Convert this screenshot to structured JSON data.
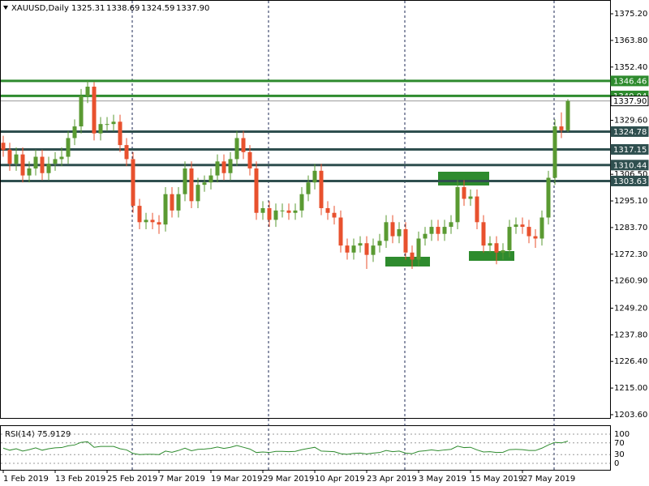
{
  "chart_data": [
    {
      "type": "candlestick",
      "title": "XAUUSD,Daily",
      "ohlc_labels": [
        "1325.31",
        "1338.69",
        "1324.59",
        "1337.90"
      ],
      "categories": [
        "1 Feb 2019",
        null,
        null,
        null,
        null,
        null,
        null,
        null,
        "13 Feb 2019",
        null,
        null,
        null,
        null,
        null,
        null,
        null,
        "25 Feb 2019",
        null,
        null,
        null,
        null,
        null,
        null,
        null,
        "7 Mar 2019",
        null,
        null,
        null,
        null,
        null,
        null,
        null,
        "19 Mar 2019",
        null,
        null,
        null,
        null,
        null,
        null,
        null,
        "29 Mar 2019",
        null,
        null,
        null,
        null,
        null,
        null,
        null,
        "10 Apr 2019",
        null,
        null,
        null,
        null,
        null,
        null,
        null,
        "23 Apr 2019",
        null,
        null,
        null,
        null,
        null,
        null,
        null,
        "3 May 2019",
        null,
        null,
        null,
        null,
        null,
        null,
        null,
        "15 May 2019",
        null,
        null,
        null,
        null,
        null,
        null,
        null,
        "27 May 2019",
        null,
        null,
        null,
        null,
        null,
        null,
        null
      ],
      "open": [
        1320,
        1317,
        1311,
        1315,
        1306,
        1309,
        1314,
        1307,
        1311,
        1313,
        1314,
        1322,
        1327,
        1340,
        1344,
        1324,
        1328,
        1328,
        1329,
        1319,
        1313,
        1293,
        1286,
        1287,
        1286,
        1285,
        1298,
        1291,
        1298,
        1309,
        1295,
        1302,
        1303,
        1306,
        1312,
        1307,
        1313,
        1322,
        1316,
        1309,
        1290,
        1292,
        1287,
        1291,
        1291,
        1290,
        1291,
        1298,
        1303,
        1308,
        1292,
        1290,
        1288,
        1276,
        1273,
        1276,
        1277,
        1272,
        1276,
        1278,
        1286,
        1280,
        1283,
        1273,
        1270,
        1279,
        1281,
        1284,
        1281,
        1284,
        1286,
        1301,
        1296,
        1297,
        1286,
        1276,
        1277,
        1273,
        1274,
        1284,
        1285,
        1284,
        1280,
        1279,
        1288,
        1305,
        1327,
        1325.31
      ],
      "high": [
        1323,
        1320,
        1318,
        1318,
        1312,
        1317,
        1317,
        1314,
        1316,
        1318,
        1325,
        1330,
        1343,
        1346.46,
        1346,
        1331,
        1331,
        1332,
        1332,
        1322,
        1316,
        1296,
        1290,
        1290,
        1289,
        1301,
        1301,
        1301,
        1312,
        1312,
        1305,
        1306,
        1309,
        1315,
        1315,
        1316,
        1325,
        1325,
        1319,
        1312,
        1295,
        1295,
        1294,
        1294,
        1294,
        1294,
        1301,
        1306,
        1311,
        1311,
        1295,
        1293,
        1291,
        1279,
        1279,
        1280,
        1280,
        1279,
        1281,
        1289,
        1289,
        1286,
        1286,
        1276,
        1282,
        1284,
        1287,
        1287,
        1287,
        1289,
        1304,
        1304,
        1300,
        1300,
        1289,
        1280,
        1280,
        1277,
        1287,
        1288,
        1288,
        1287,
        1283,
        1291,
        1308,
        1330,
        1333,
        1338.69
      ],
      "low": [
        1314,
        1308,
        1308,
        1303,
        1303,
        1306,
        1304,
        1304,
        1308,
        1310,
        1311,
        1319,
        1324,
        1337,
        1321,
        1321,
        1325,
        1325,
        1316,
        1310,
        1290,
        1283,
        1283,
        1283,
        1281,
        1282,
        1288,
        1288,
        1295,
        1292,
        1292,
        1299,
        1300,
        1303,
        1304,
        1304,
        1310,
        1313,
        1306,
        1287,
        1287,
        1284,
        1284,
        1288,
        1287,
        1287,
        1288,
        1295,
        1300,
        1289,
        1287,
        1285,
        1273,
        1270,
        1270,
        1273,
        1266,
        1269,
        1273,
        1275,
        1277,
        1277,
        1270,
        1266,
        1267,
        1276,
        1278,
        1278,
        1278,
        1281,
        1283,
        1293,
        1293,
        1283,
        1273,
        1273,
        1268,
        1270,
        1271,
        1281,
        1281,
        1277,
        1275,
        1276,
        1285,
        1302,
        1322,
        1324.59
      ],
      "close": [
        1317,
        1311,
        1315,
        1306,
        1309,
        1314,
        1307,
        1311,
        1313,
        1314,
        1322,
        1327,
        1340,
        1344,
        1324,
        1328,
        1328,
        1329,
        1319,
        1313,
        1293,
        1286,
        1287,
        1286,
        1285,
        1298,
        1291,
        1298,
        1309,
        1295,
        1302,
        1303,
        1306,
        1312,
        1307,
        1313,
        1322,
        1316,
        1309,
        1290,
        1292,
        1287,
        1291,
        1291,
        1290,
        1291,
        1298,
        1303,
        1308,
        1292,
        1290,
        1288,
        1276,
        1273,
        1276,
        1277,
        1272,
        1276,
        1278,
        1286,
        1280,
        1283,
        1273,
        1270,
        1279,
        1281,
        1284,
        1281,
        1284,
        1286,
        1301,
        1296,
        1297,
        1286,
        1276,
        1277,
        1273,
        1274,
        1284,
        1285,
        1284,
        1280,
        1279,
        1288,
        1305,
        1327,
        1325.31,
        1337.9
      ],
      "up_color": "#5a9a32",
      "down_color": "#e8512e",
      "ylim": [
        1202.2,
        1381.1
      ],
      "yticks": [
        {
          "value": 1375.2,
          "label": "1375.20"
        },
        {
          "value": 1363.8,
          "label": "1363.80"
        },
        {
          "value": 1352.4,
          "label": "1352.40"
        },
        {
          "value": 1329.6,
          "label": "1329.60"
        },
        {
          "value": 1306.5,
          "label": "1306.50"
        },
        {
          "value": 1295.1,
          "label": "1295.10"
        },
        {
          "value": 1283.7,
          "label": "1283.70"
        },
        {
          "value": 1272.3,
          "label": "1272.30"
        },
        {
          "value": 1260.9,
          "label": "1260.90"
        },
        {
          "value": 1249.2,
          "label": "1249.20"
        },
        {
          "value": 1237.8,
          "label": "1237.80"
        },
        {
          "value": 1226.4,
          "label": "1226.40"
        },
        {
          "value": 1215,
          "label": "1215.00"
        },
        {
          "value": 1203.6,
          "label": "1203.60"
        }
      ],
      "levels": {
        "values": [
          1346.46,
          1340.04,
          1337.9,
          1324.78,
          1317.15,
          1310.44,
          1303.63
        ],
        "value_labels": [
          "1346.46",
          "1340.04",
          "1337.90",
          "1324.78",
          "1317.15",
          "1310.44",
          "1303.63"
        ],
        "colors": [
          "#2e8b2e",
          "#2e8b2e",
          "#9a9a9a",
          "#2f4f4f",
          "#2f4f4f",
          "#2f4f4f",
          "#2f4f4f"
        ]
      }
    },
    {
      "type": "line",
      "title": "RSI(14) 75.9129",
      "color": "#2e8b2e",
      "values": [
        52,
        45,
        50,
        42,
        47,
        53,
        45,
        50,
        53,
        54,
        60,
        63,
        72,
        74,
        55,
        58,
        58,
        58,
        50,
        46,
        34,
        30,
        31,
        31,
        30,
        42,
        38,
        44,
        52,
        43,
        48,
        49,
        51,
        56,
        51,
        55,
        61,
        55,
        49,
        37,
        39,
        37,
        41,
        41,
        40,
        41,
        47,
        51,
        55,
        42,
        41,
        40,
        33,
        31,
        34,
        35,
        32,
        35,
        37,
        44,
        40,
        42,
        35,
        33,
        41,
        43,
        46,
        43,
        46,
        48,
        59,
        54,
        55,
        46,
        39,
        40,
        37,
        38,
        47,
        48,
        47,
        44,
        44,
        52,
        63,
        72,
        70,
        75.9129
      ],
      "ylim": [
        0,
        100
      ],
      "yticks": [
        0,
        30,
        70,
        100
      ]
    }
  ]
}
